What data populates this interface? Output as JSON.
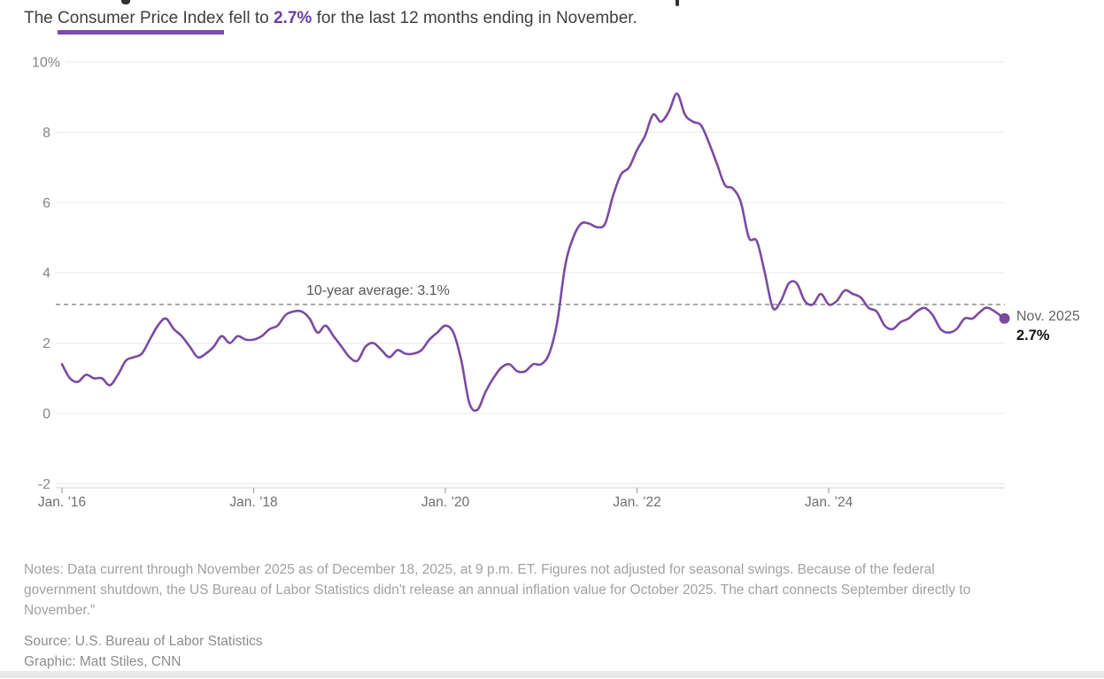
{
  "page": {
    "clipped_title_visible": true,
    "subtitle": {
      "prefix": "The ",
      "underlined": "Consumer Price Index",
      "middle": " fell to ",
      "highlight": "2.7%",
      "suffix": " for the last 12 months ending in November."
    },
    "notes": {
      "lines": [
        "Notes: Data current through November 2025 as of December 18, 2025, at 9 p.m. ET. Figures not adjusted for seasonal swings. Because of the federal",
        "government shutdown, the US Bureau of Labor Statistics didn't release an annual inflation value for October 2025. The chart connects September directly to",
        "November.\""
      ]
    },
    "source": "Source: U.S. Bureau of Labor Statistics",
    "credit": "Graphic: Matt Stiles, CNN"
  },
  "chart_data": {
    "type": "line",
    "unit": "percent change, year over year",
    "frequency": "monthly",
    "x_start": "Jan 2016",
    "x_end": "Nov 2025",
    "missing_months": [
      "Oct 2025"
    ],
    "values": [
      1.4,
      1.0,
      0.9,
      1.1,
      1.0,
      1.0,
      0.8,
      1.1,
      1.5,
      1.6,
      1.7,
      2.1,
      2.5,
      2.7,
      2.4,
      2.2,
      1.9,
      1.6,
      1.7,
      1.9,
      2.2,
      2.0,
      2.2,
      2.1,
      2.1,
      2.2,
      2.4,
      2.5,
      2.8,
      2.9,
      2.9,
      2.7,
      2.3,
      2.5,
      2.2,
      1.9,
      1.6,
      1.5,
      1.9,
      2.0,
      1.8,
      1.6,
      1.8,
      1.7,
      1.7,
      1.8,
      2.1,
      2.3,
      2.5,
      2.3,
      1.5,
      0.3,
      0.1,
      0.6,
      1.0,
      1.3,
      1.4,
      1.2,
      1.2,
      1.4,
      1.4,
      1.7,
      2.6,
      4.2,
      5.0,
      5.4,
      5.4,
      5.3,
      5.4,
      6.2,
      6.8,
      7.0,
      7.5,
      7.9,
      8.5,
      8.3,
      8.6,
      9.1,
      8.5,
      8.3,
      8.2,
      7.7,
      7.1,
      6.5,
      6.4,
      6.0,
      5.0,
      4.9,
      4.0,
      3.0,
      3.2,
      3.7,
      3.7,
      3.2,
      3.1,
      3.4,
      3.1,
      3.2,
      3.5,
      3.4,
      3.3,
      3.0,
      2.9,
      2.5,
      2.4,
      2.6,
      2.7,
      2.9,
      3.0,
      2.8,
      2.4,
      2.3,
      2.4,
      2.7,
      2.7,
      2.9,
      3.0,
      null,
      2.7
    ],
    "ylim": [
      -2,
      10
    ],
    "grid": "horizontal",
    "y_ticks": [
      {
        "label": "10%",
        "value": 10
      },
      {
        "label": "8",
        "value": 8
      },
      {
        "label": "6",
        "value": 6
      },
      {
        "label": "4",
        "value": 4
      },
      {
        "label": "2",
        "value": 2
      },
      {
        "label": "0",
        "value": 0
      },
      {
        "label": "-2",
        "value": -2
      }
    ],
    "x_ticks": [
      {
        "label": "Jan. ’16",
        "month": 0
      },
      {
        "label": "Jan. ’18",
        "month": 24
      },
      {
        "label": "Jan. ’20",
        "month": 48
      },
      {
        "label": "Jan. ’22",
        "month": 72
      },
      {
        "label": "Jan. ’24",
        "month": 96
      }
    ],
    "average_line": {
      "label": "10-year average: 3.1%",
      "value": 3.1
    },
    "end_point": {
      "label": "Nov. 2025",
      "value_label": "2.7%",
      "value": 2.7
    }
  },
  "colors": {
    "line": "#7B4AA2",
    "accent_text": "#6B3FA6",
    "underline": "#7C4BAE",
    "grid": "#ededed",
    "dashed": "#848484",
    "avg_text": "#57575c",
    "y_axis_text": "#85858c",
    "x_axis_text": "#6f6f6f",
    "axis_line": "#dcdcdc",
    "tick": "#a5a5a5",
    "end_date_text": "#666666",
    "end_value_text": "#111111",
    "bottom_bar": "#e8e8e8"
  }
}
